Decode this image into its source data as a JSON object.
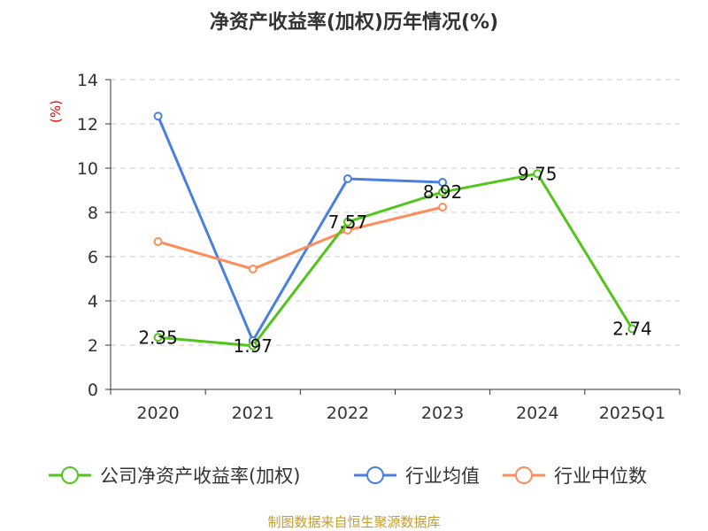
{
  "chart_data": {
    "type": "line",
    "title": "净资产收益率(加权)历年情况(%)",
    "ylabel": "(%)",
    "xlabel": "",
    "categories": [
      "2020",
      "2021",
      "2022",
      "2023",
      "2024",
      "2025Q1"
    ],
    "ylim": [
      0,
      14
    ],
    "yticks": [
      0,
      2,
      4,
      6,
      8,
      10,
      12,
      14
    ],
    "grid": true,
    "legend_position": "bottom",
    "series": [
      {
        "name": "公司净资产收益率(加权)",
        "color": "#52c41a",
        "values": [
          2.35,
          1.97,
          7.57,
          8.92,
          9.75,
          2.74
        ],
        "labels": [
          "2.35",
          "1.97",
          "7.57",
          "8.92",
          "9.75",
          "2.74"
        ]
      },
      {
        "name": "行业均值",
        "color": "#4a7fe0",
        "values": [
          12.35,
          2.2,
          9.52,
          9.36,
          null,
          null
        ]
      },
      {
        "name": "行业中位数",
        "color": "#ff8c5a",
        "values": [
          6.68,
          5.44,
          7.2,
          8.24,
          null,
          null
        ]
      }
    ]
  },
  "footer": "制图数据来自恒生聚源数据库"
}
